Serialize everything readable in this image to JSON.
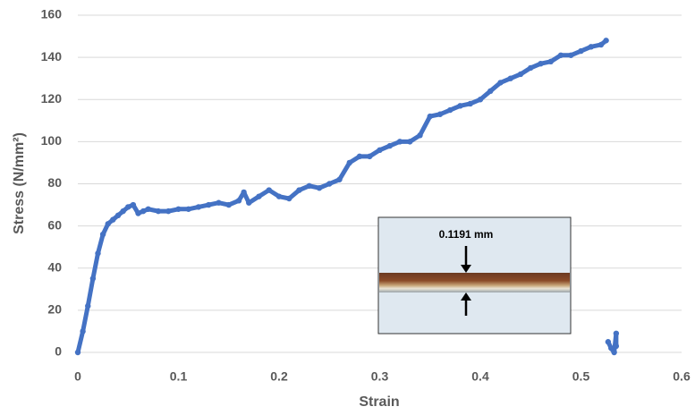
{
  "chart_data": {
    "type": "scatter",
    "x_label": "Strain",
    "y_label": "Stress (N/mm²)",
    "annotation": "0.1191 mm",
    "series": [
      {
        "color": "#4472c4",
        "x": [
          0,
          0.005,
          0.01,
          0.015,
          0.02,
          0.025,
          0.03,
          0.035,
          0.04,
          0.045,
          0.05,
          0.055,
          0.06,
          0.065,
          0.07,
          0.08,
          0.09,
          0.1,
          0.11,
          0.12,
          0.13,
          0.14,
          0.15,
          0.16,
          0.165,
          0.17,
          0.18,
          0.19,
          0.2,
          0.21,
          0.22,
          0.23,
          0.24,
          0.25,
          0.26,
          0.27,
          0.28,
          0.29,
          0.3,
          0.31,
          0.32,
          0.33,
          0.34,
          0.35,
          0.36,
          0.37,
          0.38,
          0.39,
          0.4,
          0.41,
          0.42,
          0.43,
          0.44,
          0.45,
          0.46,
          0.47,
          0.48,
          0.49,
          0.5,
          0.51,
          0.52,
          0.525
        ],
        "values": [
          0,
          10,
          22,
          35,
          47,
          56,
          61,
          63,
          65,
          67,
          69,
          70,
          66,
          67,
          68,
          67,
          67,
          68,
          68,
          69,
          70,
          71,
          70,
          72,
          76,
          71,
          74,
          77,
          74,
          73,
          77,
          79,
          78,
          80,
          82,
          90,
          93,
          93,
          96,
          98,
          100,
          100,
          103,
          112,
          113,
          115,
          117,
          118,
          120,
          124,
          128,
          130,
          132,
          135,
          137,
          138,
          141,
          141,
          143,
          145,
          146,
          148
        ]
      },
      {
        "color": "#4472c4",
        "x": [
          0.527,
          0.53,
          0.533,
          0.535,
          0.535
        ],
        "values": [
          5,
          2,
          0,
          9,
          3
        ]
      }
    ],
    "xlim": [
      0,
      0.6
    ],
    "xticks": [
      0,
      0.1,
      0.2,
      0.3,
      0.4,
      0.5,
      0.6
    ],
    "ylim": [
      0,
      160
    ],
    "yticks": [
      0,
      20,
      40,
      60,
      80,
      100,
      120,
      140,
      160
    ],
    "grid": true
  }
}
